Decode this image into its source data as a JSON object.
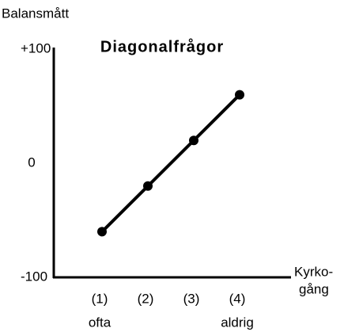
{
  "chart_data": {
    "type": "line",
    "title": "Diagonalfrågor",
    "y_label": "Balansmått",
    "x_label": [
      "Kyrko-",
      "gång"
    ],
    "categories": [
      "(1)",
      "(2)",
      "(3)",
      "(4)"
    ],
    "category_sublabels": [
      "ofta",
      null,
      null,
      "aldrig"
    ],
    "values": [
      -60,
      -20,
      20,
      60
    ],
    "color": "#000000",
    "ylim": [
      -100,
      100
    ],
    "yticks": [
      {
        "value": 100,
        "label": "+100"
      },
      0,
      -100
    ],
    "grid": false
  }
}
